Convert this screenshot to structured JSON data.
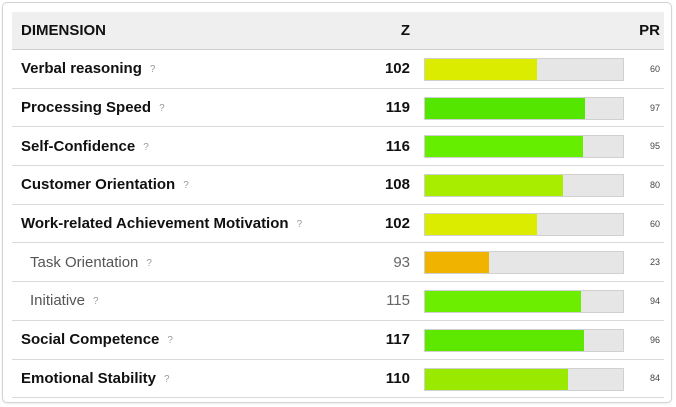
{
  "table": {
    "headers": {
      "dimension": "DIMENSION",
      "z": "Z",
      "pr": "PR"
    },
    "help_glyph": "?",
    "rows": [
      {
        "name": "Verbal reasoning",
        "z": "102",
        "pr": "60",
        "sub": false,
        "color": "#dcec00"
      },
      {
        "name": "Processing Speed",
        "z": "119",
        "pr": "97",
        "sub": false,
        "color": "#55e600"
      },
      {
        "name": "Self-Confidence",
        "z": "116",
        "pr": "95",
        "sub": false,
        "color": "#66ee00"
      },
      {
        "name": "Customer Orientation",
        "z": "108",
        "pr": "80",
        "sub": false,
        "color": "#a8ec00"
      },
      {
        "name": "Work-related Achievement Motivation",
        "z": "102",
        "pr": "60",
        "sub": false,
        "color": "#dcec00"
      },
      {
        "name": "Task Orientation",
        "z": "93",
        "pr": "23",
        "sub": true,
        "color": "#f0b400"
      },
      {
        "name": "Initiative",
        "z": "115",
        "pr": "94",
        "sub": true,
        "color": "#6cee00"
      },
      {
        "name": "Social Competence",
        "z": "117",
        "pr": "96",
        "sub": false,
        "color": "#5ee800"
      },
      {
        "name": "Emotional Stability",
        "z": "110",
        "pr": "84",
        "sub": false,
        "color": "#99ea00"
      }
    ]
  },
  "colors": {
    "header_bg": "#efefef",
    "bar_track": "#e6e6e6",
    "border": "#d9d9d9"
  }
}
